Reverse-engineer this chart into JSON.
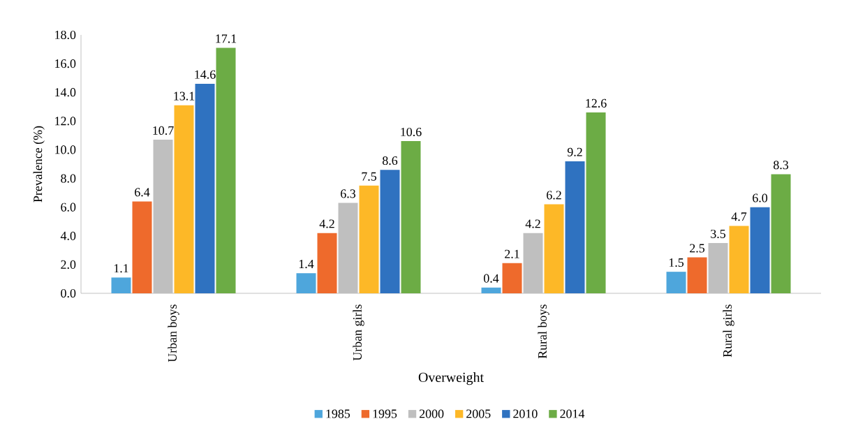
{
  "chart_data": {
    "type": "bar",
    "xlabel": "Overweight",
    "ylabel": "Prevalence (%)",
    "categories": [
      "Urban boys",
      "Urban girls",
      "Rural boys",
      "Rural girls"
    ],
    "series": [
      {
        "name": "1985",
        "color": "#4ea6dc",
        "values": [
          1.1,
          1.4,
          0.4,
          1.5
        ],
        "value_labels": [
          "1.1",
          "1.4",
          "0.4",
          "1.5"
        ]
      },
      {
        "name": "1995",
        "color": "#ee6a2c",
        "values": [
          6.4,
          4.2,
          2.1,
          2.5
        ],
        "value_labels": [
          "6.4",
          "4.2",
          "2.1",
          "2.5"
        ]
      },
      {
        "name": "2000",
        "color": "#bfbfbf",
        "values": [
          10.7,
          6.3,
          4.2,
          3.5
        ],
        "value_labels": [
          "10.7",
          "6.3",
          "4.2",
          "3.5"
        ]
      },
      {
        "name": "2005",
        "color": "#fdb827",
        "values": [
          13.1,
          7.5,
          6.2,
          4.7
        ],
        "value_labels": [
          "13.1",
          "7.5",
          "6.2",
          "4.7"
        ]
      },
      {
        "name": "2010",
        "color": "#2f72c0",
        "values": [
          14.6,
          8.6,
          9.2,
          6.0
        ],
        "value_labels": [
          "14.6",
          "8.6",
          "9.2",
          "6.0"
        ]
      },
      {
        "name": "2014",
        "color": "#6cac45",
        "values": [
          17.1,
          10.6,
          12.6,
          8.3
        ],
        "value_labels": [
          "17.1",
          "10.6",
          "12.6",
          "8.3"
        ]
      }
    ],
    "ylim": [
      0,
      18
    ],
    "yticks": [
      {
        "value": 0,
        "label": "0.0"
      },
      {
        "value": 2,
        "label": "2.0"
      },
      {
        "value": 4,
        "label": "4.0"
      },
      {
        "value": 6,
        "label": "6.0"
      },
      {
        "value": 8,
        "label": "8.0"
      },
      {
        "value": 10,
        "label": "10.0"
      },
      {
        "value": 12,
        "label": "12.0"
      },
      {
        "value": 14,
        "label": "14.0"
      },
      {
        "value": 16,
        "label": "16.0"
      },
      {
        "value": 18,
        "label": "18.0"
      }
    ],
    "legend": "bottom"
  }
}
